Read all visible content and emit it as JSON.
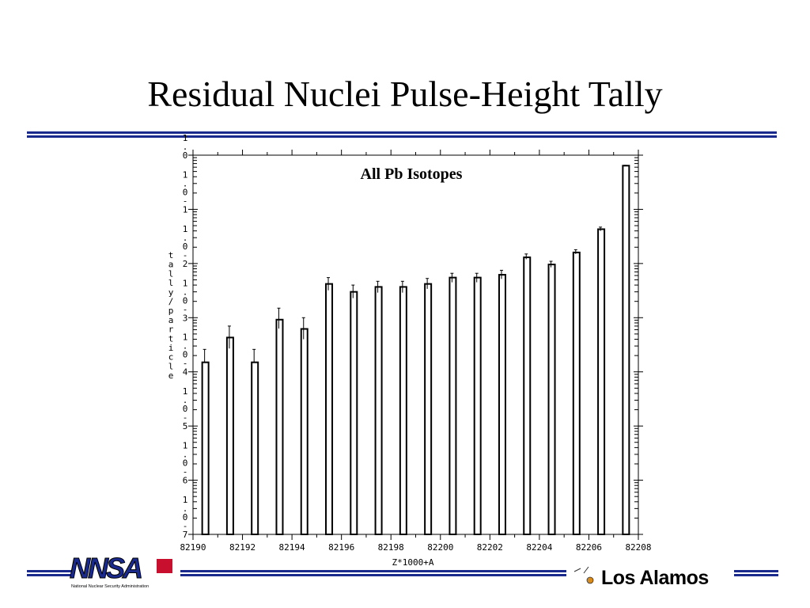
{
  "slide": {
    "title": "Residual Nuclei Pulse-Height Tally"
  },
  "footer": {
    "left_logo_text": "NNSA",
    "left_logo_subtext": "National Nuclear Security Administration",
    "right_logo_text": "Los Alamos"
  },
  "colors": {
    "rule": "#1a2a8c",
    "bars": "#000000"
  },
  "chart_data": {
    "type": "bar",
    "title": "All Pb Isotopes",
    "xlabel": "Z*1000+A",
    "ylabel": "tally/particle",
    "x_tick_labels": [
      "82190",
      "82192",
      "82194",
      "82196",
      "82198",
      "82200",
      "82202",
      "82204",
      "82206",
      "82208"
    ],
    "x_range": [
      82190,
      82208
    ],
    "y_scale": "log",
    "y_range": [
      1e-07,
      1
    ],
    "y_tick_labels": [
      "1.0",
      "1.0-1",
      "1.0-2",
      "1.0-3",
      "1.0-4",
      "1.0-5",
      "1.0-6",
      "1.0-7"
    ],
    "grid": false,
    "categories": [
      82191,
      82192,
      82193,
      82194,
      82195,
      82196,
      82197,
      82198,
      82199,
      82200,
      82201,
      82202,
      82203,
      82204,
      82205,
      82206,
      82207,
      82208
    ],
    "values": [
      0.00015,
      0.00043,
      0.00015,
      0.00092,
      0.00062,
      0.0042,
      0.003,
      0.0037,
      0.0037,
      0.0042,
      0.0055,
      0.0055,
      0.0062,
      0.013,
      0.0096,
      0.016,
      0.043,
      0.64
    ],
    "error_upper": [
      0.00026,
      0.0007,
      0.00026,
      0.0015,
      0.001,
      0.0055,
      0.004,
      0.0047,
      0.0047,
      0.0053,
      0.0066,
      0.0066,
      0.0075,
      0.015,
      0.011,
      0.018,
      0.047,
      0.65
    ],
    "error_lower": [
      0.00015,
      0.00027,
      0.00015,
      0.00063,
      0.0004,
      0.0032,
      0.0023,
      0.0029,
      0.0029,
      0.0034,
      0.0045,
      0.0045,
      0.0052,
      0.012,
      0.0085,
      0.015,
      0.04,
      0.63
    ]
  }
}
